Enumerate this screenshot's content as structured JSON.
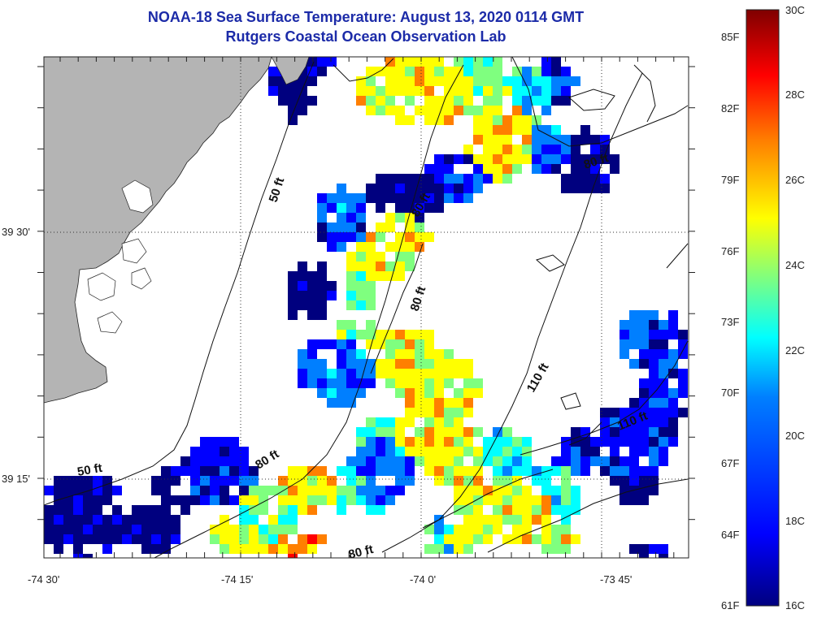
{
  "header": {
    "title": "NOAA-18 Sea Surface Temperature:  August 13, 2020 0114 GMT",
    "subtitle": "Rutgers Coastal Ocean Observation Lab"
  },
  "axes": {
    "lon_labels": [
      "-74 30'",
      "-74 15'",
      "-74 0'",
      "-73 45'"
    ],
    "lat_labels": [
      "39 30'",
      "39 15'"
    ],
    "extent": {
      "lon_min": -74.52,
      "lon_max": -73.62,
      "lat_min": 39.17,
      "lat_max": 39.69
    }
  },
  "depth_labels": [
    {
      "text": "50 ft"
    },
    {
      "text": "50 ft"
    },
    {
      "text": "80 ft"
    },
    {
      "text": "80 ft"
    },
    {
      "text": "80 ft"
    },
    {
      "text": "80 ft"
    },
    {
      "text": "80 ft"
    },
    {
      "text": "110 ft"
    },
    {
      "text": "110 ft"
    }
  ],
  "colorbar": {
    "f_labels": [
      "85F",
      "82F",
      "79F",
      "76F",
      "73F",
      "70F",
      "67F",
      "64F",
      "61F"
    ],
    "c_labels": [
      "30C",
      "28C",
      "26C",
      "24C",
      "22C",
      "20C",
      "18C",
      "16C"
    ],
    "range_c": [
      16,
      30
    ],
    "colors": [
      "#00007f",
      "#0000ff",
      "#007fff",
      "#00ffff",
      "#7fff7f",
      "#ffff00",
      "#ff7f00",
      "#ff0000",
      "#7f0000"
    ]
  },
  "colors": {
    "land": "#b4b4b4",
    "no_data": "#ffffff",
    "title": "#1c2ba8",
    "grid": "#333333"
  }
}
